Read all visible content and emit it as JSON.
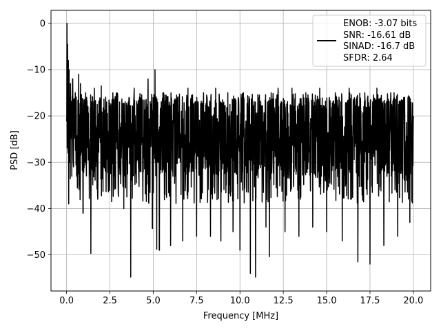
{
  "chart_data": {
    "type": "line",
    "title": "",
    "xlabel": "Frequency [MHz]",
    "ylabel": "PSD [dB]",
    "xlim": [
      -0.9,
      21.0
    ],
    "ylim": [
      -57.8,
      2.8
    ],
    "grid": true,
    "xticks": [
      0.0,
      2.5,
      5.0,
      7.5,
      10.0,
      12.5,
      15.0,
      17.5,
      20.0
    ],
    "xtick_labels": [
      "0.0",
      "2.5",
      "5.0",
      "7.5",
      "10.0",
      "12.5",
      "15.0",
      "17.5",
      "20.0"
    ],
    "yticks": [
      0,
      -10,
      -20,
      -30,
      -40,
      -50
    ],
    "ytick_labels": [
      "0",
      "−10",
      "−20",
      "−30",
      "−40",
      "−50"
    ],
    "legend": {
      "placement": "top-right",
      "lines": [
        "ENOB: -3.07 bits",
        "SNR: -16.61 dB",
        "SINAD: -16.7 dB",
        "SFDR: 2.64"
      ]
    },
    "series": [
      {
        "color": "#000000",
        "x_range": [
          0.0,
          20.0
        ],
        "points": [
          [
            0.0,
            -20.5
          ],
          [
            0.02,
            0.0
          ],
          [
            0.04,
            -12.0
          ],
          [
            0.06,
            -4.5
          ],
          [
            0.08,
            -28.0
          ],
          [
            0.1,
            -8.0
          ],
          [
            0.12,
            -39.0
          ],
          [
            0.14,
            -10.0
          ],
          [
            0.18,
            -30.0
          ],
          [
            0.22,
            -13.0
          ],
          [
            0.3,
            -33.0
          ],
          [
            0.35,
            -12.0
          ],
          [
            0.4,
            -31.0
          ],
          [
            0.5,
            -15.0
          ],
          [
            0.7,
            -11.0
          ],
          [
            0.75,
            -35.0
          ],
          [
            0.8,
            -13.0
          ],
          [
            0.95,
            -41.0
          ],
          [
            1.1,
            -15.0
          ],
          [
            1.4,
            -49.7
          ],
          [
            1.6,
            -14.0
          ],
          [
            1.8,
            -38.0
          ],
          [
            2.0,
            -13.5
          ],
          [
            2.3,
            -17.0
          ],
          [
            2.6,
            -38.5
          ],
          [
            2.9,
            -15.0
          ],
          [
            3.3,
            -40.0
          ],
          [
            3.6,
            -16.0
          ],
          [
            3.7,
            -54.8
          ],
          [
            3.9,
            -14.0
          ],
          [
            4.2,
            -16.0
          ],
          [
            4.7,
            -12.0
          ],
          [
            4.95,
            -44.3
          ],
          [
            5.1,
            -10.0
          ],
          [
            5.2,
            -48.8
          ],
          [
            5.35,
            -49.0
          ],
          [
            5.6,
            -15.0
          ],
          [
            6.0,
            -48.0
          ],
          [
            6.4,
            -16.0
          ],
          [
            6.7,
            -47.0
          ],
          [
            7.0,
            -14.0
          ],
          [
            7.5,
            -46.0
          ],
          [
            7.9,
            -15.0
          ],
          [
            8.3,
            -46.0
          ],
          [
            8.6,
            -14.0
          ],
          [
            8.9,
            -47.0
          ],
          [
            9.3,
            -15.0
          ],
          [
            9.6,
            -45.0
          ],
          [
            9.9,
            -16.0
          ],
          [
            10.0,
            -49.0
          ],
          [
            10.2,
            -15.0
          ],
          [
            10.6,
            -54.0
          ],
          [
            10.9,
            -54.8
          ],
          [
            11.1,
            -16.0
          ],
          [
            11.5,
            -44.0
          ],
          [
            11.8,
            -15.0
          ],
          [
            11.7,
            -50.4
          ],
          [
            12.2,
            -14.0
          ],
          [
            12.6,
            -45.0
          ],
          [
            13.0,
            -14.0
          ],
          [
            13.4,
            -46.0
          ],
          [
            13.8,
            -15.0
          ],
          [
            14.2,
            -44.0
          ],
          [
            14.6,
            -14.0
          ],
          [
            15.0,
            -45.0
          ],
          [
            15.5,
            -15.0
          ],
          [
            15.9,
            -47.0
          ],
          [
            16.3,
            -14.0
          ],
          [
            16.8,
            -51.5
          ],
          [
            17.2,
            -15.0
          ],
          [
            17.5,
            -52.0
          ],
          [
            17.9,
            -14.0
          ],
          [
            18.3,
            -48.0
          ],
          [
            18.7,
            -15.0
          ],
          [
            19.1,
            -46.0
          ],
          [
            19.5,
            -16.0
          ],
          [
            19.8,
            -43.0
          ],
          [
            20.0,
            -20.0
          ]
        ]
      }
    ]
  }
}
